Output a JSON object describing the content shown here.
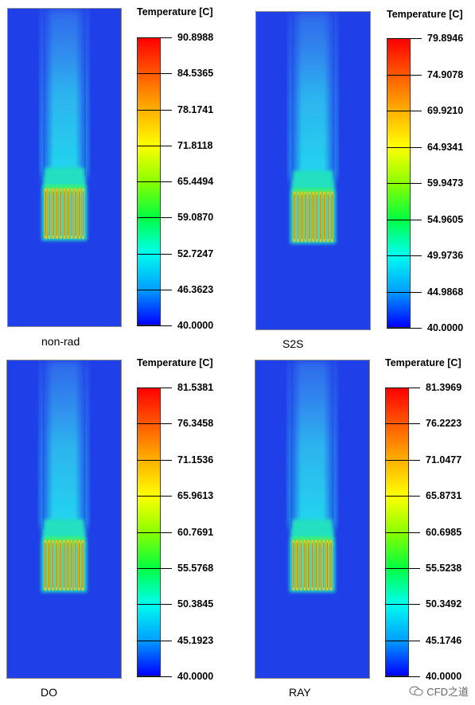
{
  "colormap": [
    "#0000ff",
    "#00a0ff",
    "#00ffee",
    "#00ff40",
    "#8cff00",
    "#ffff00",
    "#ffb000",
    "#ff5a00",
    "#ff0000"
  ],
  "chart_data": [
    {
      "type": "heatmap",
      "label": "non-rad",
      "colorbar_title": "Temperature [C]",
      "range": [
        40.0,
        90.8988
      ],
      "ticks": [
        "90.8988",
        "84.5365",
        "78.1741",
        "71.8118",
        "65.4494",
        "59.0870",
        "52.7247",
        "46.3623",
        "40.0000"
      ]
    },
    {
      "type": "heatmap",
      "label": "S2S",
      "colorbar_title": "Temperature [C]",
      "range": [
        40.0,
        79.8946
      ],
      "ticks": [
        "79.8946",
        "74.9078",
        "69.9210",
        "64.9341",
        "59.9473",
        "54.9605",
        "49.9736",
        "44.9868",
        "40.0000"
      ]
    },
    {
      "type": "heatmap",
      "label": "DO",
      "colorbar_title": "Temperature [C]",
      "range": [
        40.0,
        81.5381
      ],
      "ticks": [
        "81.5381",
        "76.3458",
        "71.1536",
        "65.9613",
        "60.7691",
        "55.5768",
        "50.3845",
        "45.1923",
        "40.0000"
      ]
    },
    {
      "type": "heatmap",
      "label": "RAY",
      "colorbar_title": "Temperature [C]",
      "range": [
        40.0,
        81.3969
      ],
      "ticks": [
        "81.3969",
        "76.2223",
        "71.0477",
        "65.8731",
        "60.6985",
        "55.5238",
        "50.3492",
        "45.1746",
        "40.0000"
      ]
    }
  ],
  "watermark": {
    "text": "CFD之道"
  }
}
